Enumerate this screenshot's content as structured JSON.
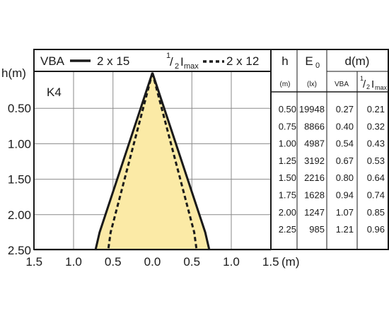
{
  "chart_data": {
    "type": "line",
    "panel_label": "K4",
    "y_axis_label": "h(m)",
    "x_axis_unit": "(m)",
    "x_ticks": [
      "1.5",
      "1.0",
      "0.5",
      "0.0",
      "0.5",
      "1.0",
      "1.5"
    ],
    "y_ticks": [
      "0.50",
      "1.00",
      "1.50",
      "2.00",
      "2.50"
    ],
    "xlim": [
      -1.5,
      1.5
    ],
    "ylim": [
      0,
      2.5
    ],
    "grid": true,
    "legend": {
      "vba_label": "VBA",
      "vba_value": "2 x 15",
      "half_prefix_num": "1",
      "half_prefix_den": "2",
      "imax_main": "I",
      "imax_sub": "max",
      "imax_value": "2 x 12"
    },
    "series": [
      {
        "name": "VBA",
        "style": "solid",
        "points": [
          [
            0,
            0
          ],
          [
            -0.67,
            2.25
          ],
          [
            -0.72,
            2.5
          ],
          [
            0.72,
            2.5
          ],
          [
            0.67,
            2.25
          ]
        ]
      },
      {
        "name": "½Imax",
        "style": "dashed",
        "points": [
          [
            0,
            0
          ],
          [
            -0.53,
            2.25
          ],
          [
            -0.56,
            2.5
          ],
          [
            0.56,
            2.5
          ],
          [
            0.53,
            2.25
          ]
        ]
      }
    ],
    "fill_color": "#fbeaa6",
    "table": {
      "headers": {
        "h": "h",
        "e0_main": "E",
        "e0_sub": "0",
        "d": "d(m)"
      },
      "units": {
        "h": "(m)",
        "e0": "(lx)",
        "vba": "VBA",
        "imax_num": "1",
        "imax_den": "2",
        "imax_main": "I",
        "imax_sub": "max"
      },
      "rows": [
        {
          "h": "0.50",
          "e0": "19948",
          "vba": "0.27",
          "half": "0.21"
        },
        {
          "h": "0.75",
          "e0": "8866",
          "vba": "0.40",
          "half": "0.32"
        },
        {
          "h": "1.00",
          "e0": "4987",
          "vba": "0.54",
          "half": "0.43"
        },
        {
          "h": "1.25",
          "e0": "3192",
          "vba": "0.67",
          "half": "0.53"
        },
        {
          "h": "1.50",
          "e0": "2216",
          "vba": "0.80",
          "half": "0.64"
        },
        {
          "h": "1.75",
          "e0": "1628",
          "vba": "0.94",
          "half": "0.74"
        },
        {
          "h": "2.00",
          "e0": "1247",
          "vba": "1.07",
          "half": "0.85"
        },
        {
          "h": "2.25",
          "e0": "985",
          "vba": "1.21",
          "half": "0.96"
        }
      ]
    }
  }
}
